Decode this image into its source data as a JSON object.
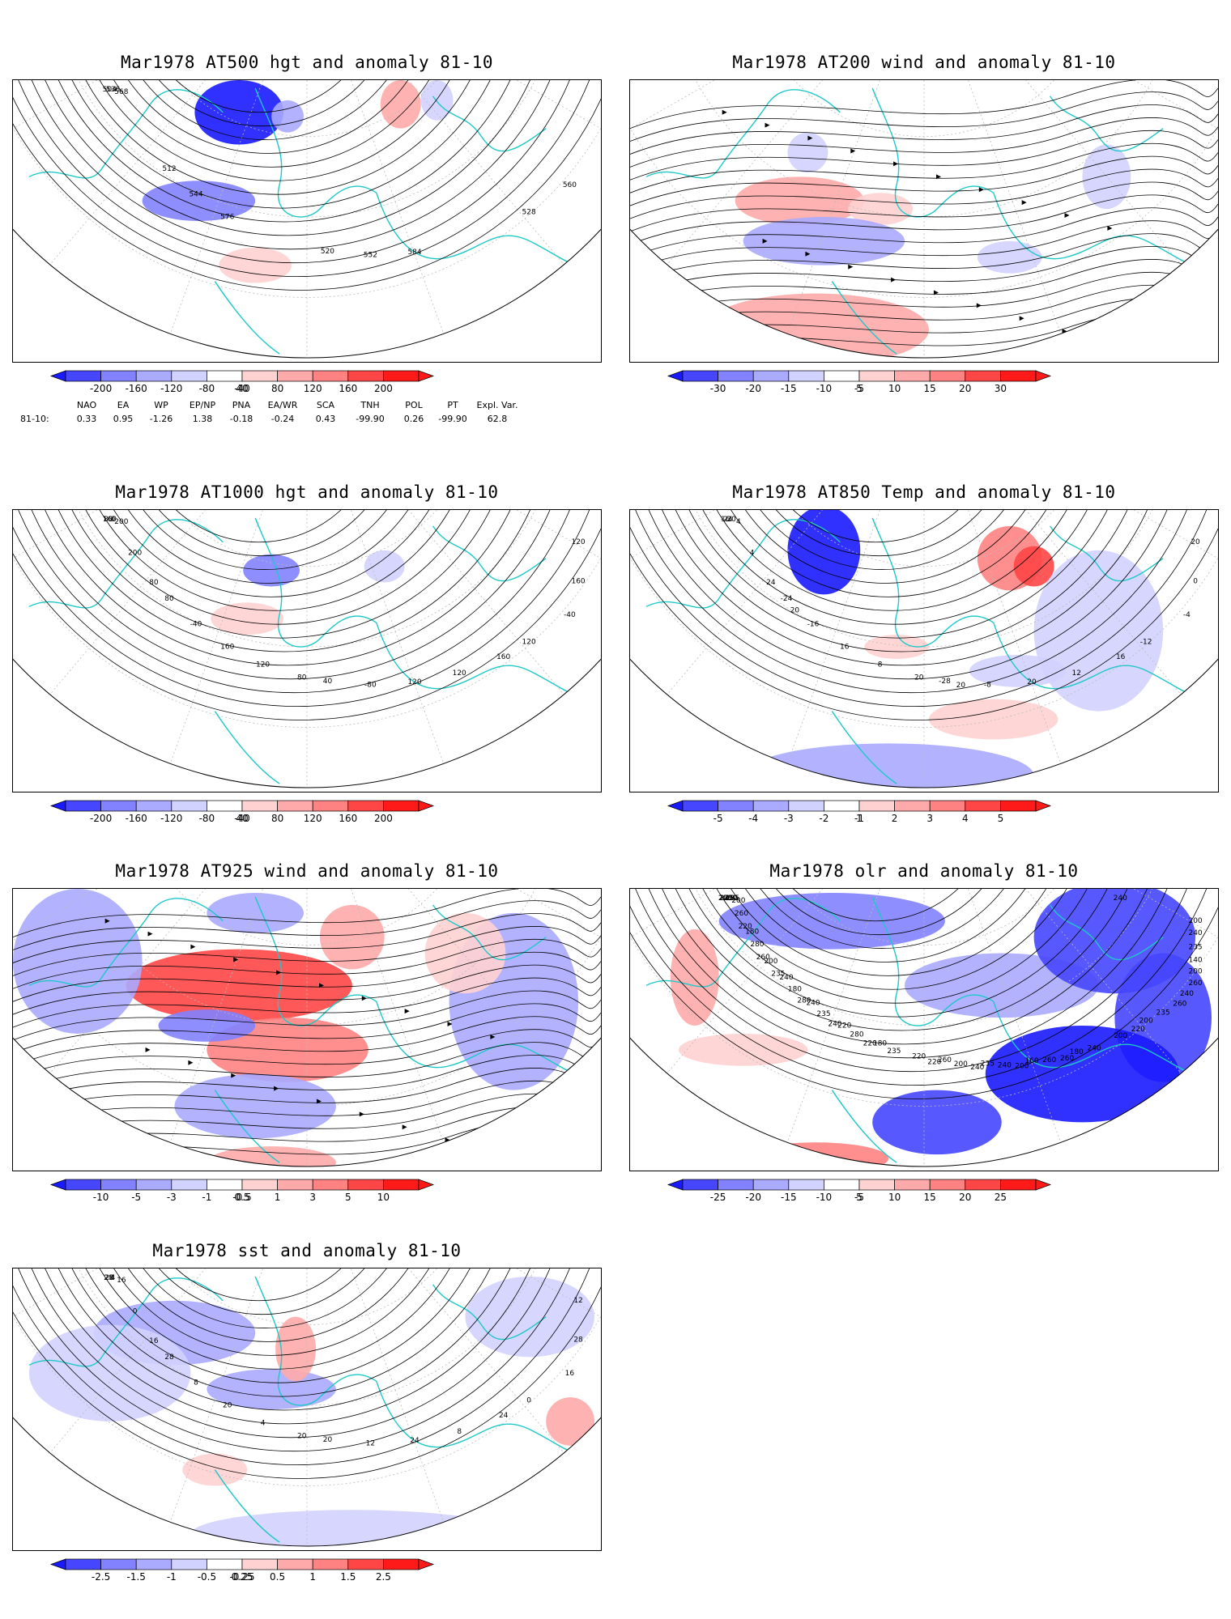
{
  "panels": [
    {
      "id": "p500",
      "title": "Mar1978 AT500 hgt and anomaly 81-10",
      "type": "contours",
      "contour_labels": [
        "504",
        "512",
        "520",
        "528",
        "536",
        "544",
        "552",
        "560",
        "568",
        "576",
        "584"
      ],
      "colorbar": [
        "-200",
        "-160",
        "-120",
        "-80",
        "-40",
        "40",
        "80",
        "120",
        "160",
        "200"
      ]
    },
    {
      "id": "p200",
      "title": "Mar1978 AT200 wind and anomaly 81-10",
      "type": "streamlines",
      "contour_labels": [],
      "colorbar": [
        "-30",
        "-20",
        "-15",
        "-10",
        "-5",
        "5",
        "10",
        "15",
        "20",
        "30"
      ]
    },
    {
      "id": "p1000",
      "title": "Mar1978 AT1000 hgt and anomaly 81-10",
      "type": "contours",
      "contour_labels": [
        "160",
        "80",
        "40",
        "120",
        "0",
        "-40",
        "-80",
        "-40",
        "200",
        "160",
        "120",
        "160",
        "200",
        "120",
        "120",
        "120",
        "80",
        "80",
        "160",
        "80"
      ],
      "colorbar": [
        "-200",
        "-160",
        "-120",
        "-80",
        "-40",
        "40",
        "80",
        "120",
        "160",
        "200"
      ]
    },
    {
      "id": "p850",
      "title": "Mar1978 AT850 Temp and anomaly 81-10",
      "type": "contours",
      "contour_labels": [
        "-24",
        "-24",
        "-28",
        "-12",
        "-20",
        "-16",
        "-8",
        "-4",
        "4",
        "16",
        "20",
        "0",
        "4",
        "8",
        "12",
        "20",
        "24",
        "20",
        "16",
        "16",
        "20",
        "20"
      ],
      "colorbar": [
        "-5",
        "-4",
        "-3",
        "-2",
        "-1",
        "1",
        "2",
        "3",
        "4",
        "5"
      ]
    },
    {
      "id": "p925",
      "title": "Mar1978 AT925 wind and anomaly 81-10",
      "type": "streamlines",
      "contour_labels": [],
      "colorbar": [
        "-10",
        "-5",
        "-3",
        "-1",
        "-0.5",
        "0.5",
        "1",
        "3",
        "5",
        "10"
      ]
    },
    {
      "id": "polr",
      "title": "Mar1978 olr and anomaly 81-10",
      "type": "contours",
      "contour_labels": [
        "235",
        "240",
        "260",
        "200",
        "280",
        "240",
        "235",
        "240",
        "200",
        "220",
        "160",
        "140",
        "180",
        "180",
        "180",
        "200",
        "200",
        "220",
        "200",
        "200",
        "180",
        "200",
        "235",
        "220",
        "235",
        "240",
        "260",
        "260",
        "280",
        "260",
        "235",
        "280",
        "235",
        "240",
        "240",
        "235",
        "220",
        "220",
        "260",
        "280",
        "240",
        "260",
        "235",
        "240",
        "200",
        "200",
        "220",
        "220",
        "260",
        "240",
        "260"
      ],
      "colorbar": [
        "-25",
        "-20",
        "-15",
        "-10",
        "-5",
        "5",
        "10",
        "15",
        "20",
        "25"
      ]
    },
    {
      "id": "psst",
      "title": "Mar1978 sst and anomaly 81-10",
      "type": "contours",
      "contour_labels": [
        "28",
        "28",
        "20",
        "0",
        "4",
        "8",
        "12",
        "16",
        "16",
        "20",
        "24",
        "28",
        "0",
        "4",
        "8",
        "12",
        "16",
        "20",
        "24",
        "28"
      ],
      "colorbar": [
        "-2.5",
        "-1.5",
        "-1",
        "-0.5",
        "-0.25",
        "0.25",
        "0.5",
        "1",
        "1.5",
        "2.5"
      ]
    }
  ],
  "teleconnection": {
    "headers": [
      "NAO",
      "EA",
      "WP",
      "EP/NP",
      "PNA",
      "EA/WR",
      "SCA",
      "TNH",
      "POL",
      "PT",
      "Expl. Var."
    ],
    "row_label": "81-10:",
    "values": [
      "0.33",
      "0.95",
      "-1.26",
      "1.38",
      "-0.18",
      "-0.24",
      "0.43",
      "-99.90",
      "0.26",
      "-99.90",
      "62.8"
    ]
  },
  "colors": {
    "coast": "#1ec8c8",
    "blue_scale": [
      "#1a1aff",
      "#4646ff",
      "#8282ff",
      "#aaaaff",
      "#d2d2ff"
    ],
    "red_scale": [
      "#ffd2d2",
      "#ffaaaa",
      "#ff8282",
      "#ff4646",
      "#ff1a1a"
    ],
    "contour": "#000000",
    "grid": "#bbbbbb"
  }
}
